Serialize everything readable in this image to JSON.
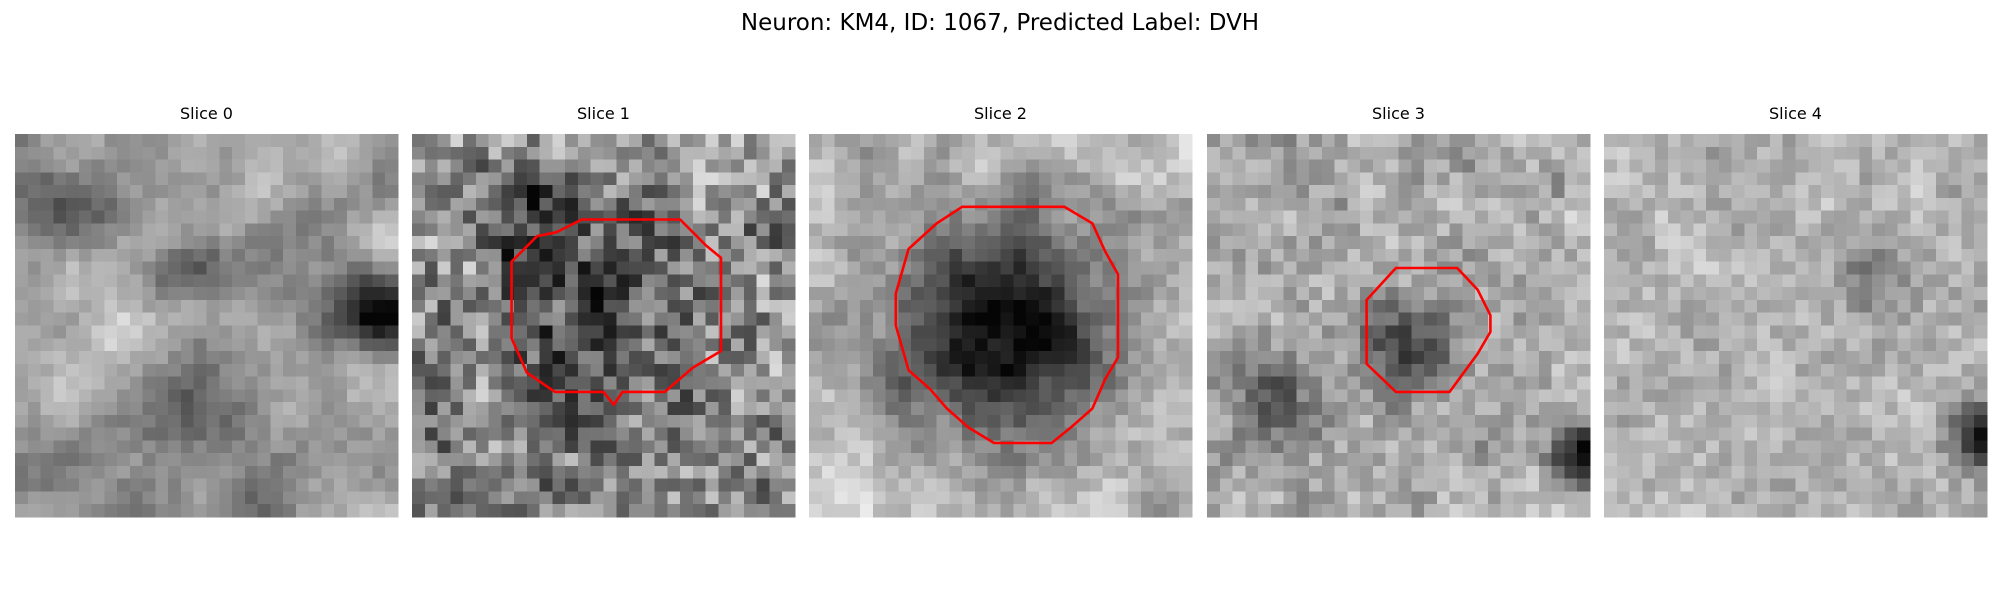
{
  "title": "Neuron: KM4, ID: 1067, Predicted Label: DVH",
  "panels": [
    {
      "title": "Slice 0"
    },
    {
      "title": "Slice 1"
    },
    {
      "title": "Slice 2"
    },
    {
      "title": "Slice 3"
    },
    {
      "title": "Slice 4"
    }
  ]
}
